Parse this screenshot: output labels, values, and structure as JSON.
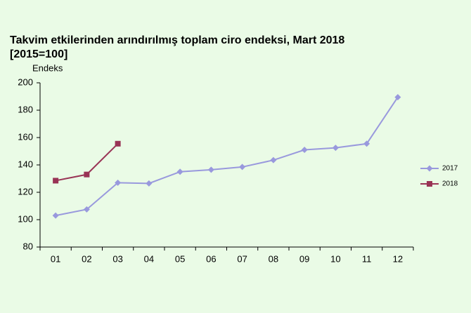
{
  "chart_data": {
    "type": "line",
    "title": "Takvim etkilerinden arındırılmış toplam ciro endeksi, Mart 2018",
    "subtitle": "[2015=100]",
    "y_label": "Endeks",
    "categories": [
      "01",
      "02",
      "03",
      "04",
      "05",
      "06",
      "07",
      "08",
      "09",
      "10",
      "11",
      "12"
    ],
    "series": [
      {
        "name": "2017",
        "color": "#9999dd",
        "marker": "diamond",
        "values": [
          103,
          107.5,
          127,
          126.5,
          135,
          136.5,
          138.5,
          143.5,
          151,
          152.5,
          155.5,
          189.5
        ]
      },
      {
        "name": "2018",
        "color": "#993355",
        "marker": "square",
        "values": [
          128.5,
          133,
          155.5,
          null,
          null,
          null,
          null,
          null,
          null,
          null,
          null,
          null
        ]
      }
    ],
    "ylim": [
      80,
      200
    ],
    "yticks": [
      80,
      100,
      120,
      140,
      160,
      180,
      200
    ],
    "legend": "right"
  }
}
